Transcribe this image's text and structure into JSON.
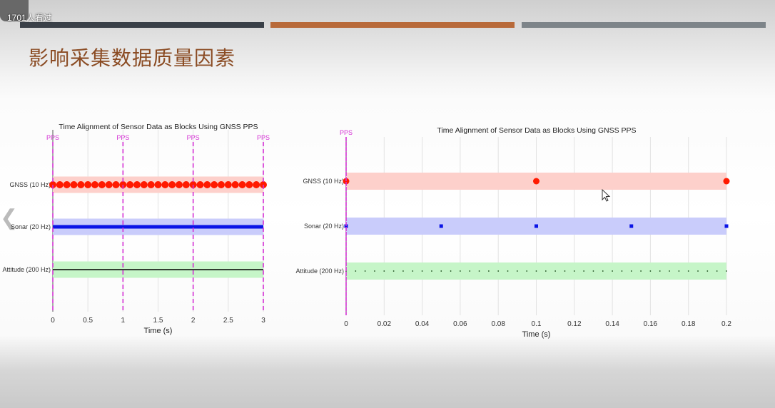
{
  "overlay": {
    "views_text": "1701人看过"
  },
  "slide": {
    "title": "影响采集数据质量因素",
    "bar_colors": [
      "#3a4048",
      "#b86a3a",
      "#7d8489"
    ]
  },
  "colors": {
    "gnss": "#ff1a00",
    "gnss_band": "#fdd0cb",
    "sonar": "#0a14e6",
    "sonar_band": "#c9ccfb",
    "attitude": "#000000",
    "attitude_band": "#c6f5c8",
    "pps": "#d42fd4"
  },
  "chart_data": [
    {
      "type": "scatter",
      "title": "Time Alignment of Sensor Data as Blocks Using GNSS PPS",
      "xlabel": "Time (s)",
      "ylabel": "",
      "xlim": [
        0,
        3
      ],
      "xticks": [
        "0",
        "0.5",
        "1",
        "1.5",
        "2",
        "2.5",
        "3"
      ],
      "xtick_values": [
        0,
        0.5,
        1,
        1.5,
        2,
        2.5,
        3
      ],
      "categories": [
        "GNSS (10 Hz)",
        "Sonar (20 Hz)",
        "Attitude (200 Hz)"
      ],
      "pps": {
        "label": "PPS",
        "times": [
          0,
          1,
          2,
          3
        ]
      },
      "series": [
        {
          "name": "GNSS (10 Hz)",
          "marker": "circle",
          "start": 0,
          "end": 3,
          "step": 0.1
        },
        {
          "name": "Sonar (20 Hz)",
          "marker": "square",
          "start": 0,
          "end": 3,
          "step": 0.05
        },
        {
          "name": "Attitude (200 Hz)",
          "marker": "dot",
          "start": 0,
          "end": 3,
          "step": 0.005
        }
      ],
      "grid": "vertical"
    },
    {
      "type": "scatter",
      "title": "Time Alignment of Sensor Data as Blocks Using GNSS PPS",
      "xlabel": "Time (s)",
      "ylabel": "",
      "xlim": [
        0,
        0.2
      ],
      "xticks": [
        "0",
        "0.02",
        "0.04",
        "0.06",
        "0.08",
        "0.1",
        "0.12",
        "0.14",
        "0.16",
        "0.18",
        "0.2"
      ],
      "xtick_values": [
        0,
        0.02,
        0.04,
        0.06,
        0.08,
        0.1,
        0.12,
        0.14,
        0.16,
        0.18,
        0.2
      ],
      "categories": [
        "GNSS (10 Hz)",
        "Sonar (20 Hz)",
        "Attitude (200 Hz)"
      ],
      "pps": {
        "label": "PPS",
        "times": [
          0
        ]
      },
      "series": [
        {
          "name": "GNSS (10 Hz)",
          "marker": "circle",
          "start": 0,
          "end": 0.2,
          "step": 0.1
        },
        {
          "name": "Sonar (20 Hz)",
          "marker": "square",
          "start": 0,
          "end": 0.2,
          "step": 0.05
        },
        {
          "name": "Attitude (200 Hz)",
          "marker": "dot",
          "start": 0,
          "end": 0.2,
          "step": 0.005
        }
      ],
      "grid": "vertical"
    }
  ]
}
